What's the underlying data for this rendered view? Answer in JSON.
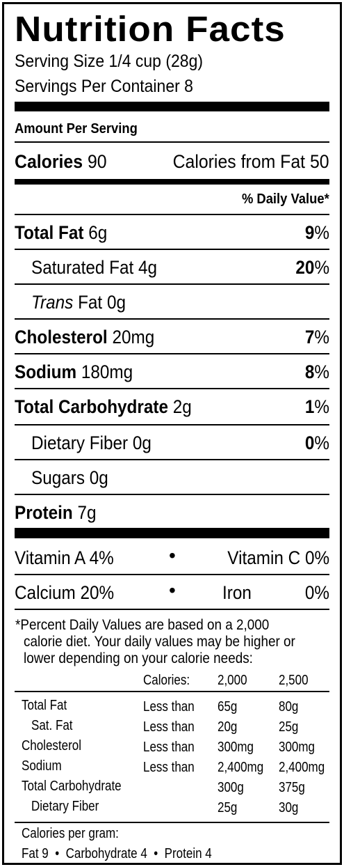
{
  "title": "Nutrition Facts",
  "serving_size": "Serving Size 1/4 cup (28g)",
  "servings_per_container": "Servings Per Container 8",
  "amount_per_serving": "Amount Per Serving",
  "calories": {
    "label": "Calories",
    "value": "90",
    "from_fat": "Calories from Fat 50"
  },
  "daily_value_header": "% Daily Value*",
  "nutrients": [
    {
      "label": "Total Fat",
      "amount": "6g",
      "pct_num": "9",
      "pct_sign": "%",
      "bold": true
    },
    {
      "label": "Saturated Fat",
      "amount": "4g",
      "pct_num": "20",
      "pct_sign": "%",
      "bold": false
    },
    {
      "label": "Trans",
      "label_rest": "Fat",
      "amount": "0g",
      "pct_num": "",
      "pct_sign": "",
      "bold": false
    },
    {
      "label": "Cholesterol",
      "amount": "20mg",
      "pct_num": "7",
      "pct_sign": "%",
      "bold": true
    },
    {
      "label": "Sodium",
      "amount": "180mg",
      "pct_num": "8",
      "pct_sign": "%",
      "bold": true
    },
    {
      "label": "Total Carbohydrate",
      "amount": "2g",
      "pct_num": "1",
      "pct_sign": "%",
      "bold": true
    },
    {
      "label": "Dietary Fiber",
      "amount": "0g",
      "pct_num": "0",
      "pct_sign": "%",
      "bold": false
    },
    {
      "label": "Sugars",
      "amount": "0g",
      "pct_num": "",
      "pct_sign": "",
      "bold": false
    },
    {
      "label": "Protein",
      "amount": "7g",
      "pct_num": "",
      "pct_sign": "",
      "bold": true
    }
  ],
  "vitamins": {
    "vitamin_a": "Vitamin A 4%",
    "vitamin_c": "Vitamin C 0%",
    "calcium": "Calcium 20%",
    "iron_label": "Iron",
    "iron_value": "0%",
    "bullet": "•"
  },
  "footnote": {
    "line1": "*Percent Daily Values are based on a 2,000",
    "line2": "calorie diet. Your daily values may be higher or",
    "line3": "lower depending on your calorie needs:"
  },
  "dv_table": {
    "header": [
      "Calories:",
      "2,000",
      "2,500"
    ],
    "rows": [
      {
        "name": "Total Fat",
        "qual": "Less than",
        "v1": "65g",
        "v2": "80g"
      },
      {
        "name": "Sat. Fat",
        "qual": "Less than",
        "v1": "20g",
        "v2": "25g"
      },
      {
        "name": "Cholesterol",
        "qual": "Less than",
        "v1": "300mg",
        "v2": "300mg"
      },
      {
        "name": "Sodium",
        "qual": "Less than",
        "v1": "2,400mg",
        "v2": "2,400mg"
      },
      {
        "name": "Total Carbohydrate",
        "qual": "",
        "v1": "300g",
        "v2": "375g"
      },
      {
        "name": "Dietary Fiber",
        "qual": "",
        "v1": "25g",
        "v2": "30g"
      }
    ]
  },
  "cal_per_gram": {
    "label": "Calories per gram:",
    "fat": "Fat 9",
    "carb": "Carbohydrate 4",
    "protein": "Protein 4",
    "bullet": "•"
  }
}
